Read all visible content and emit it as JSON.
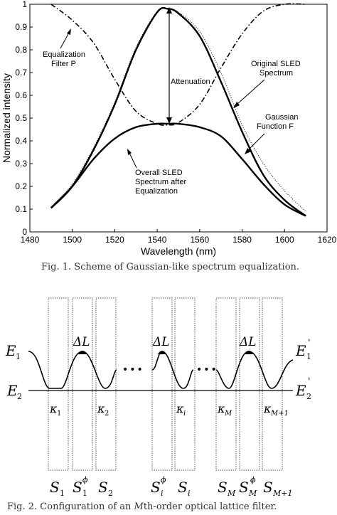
{
  "fig1": {
    "chart_data": {
      "type": "line",
      "xlabel": "Wavelength (nm)",
      "ylabel": "Normalized intensity",
      "xlim": [
        1480,
        1620
      ],
      "ylim": [
        0,
        1
      ],
      "x_ticks": [
        "1480",
        "1500",
        "1520",
        "1540",
        "1560",
        "1580",
        "1600",
        "1620"
      ],
      "y_ticks": [
        "0",
        "0.1",
        "0.2",
        "0.3",
        "0.4",
        "0.5",
        "0.6",
        "0.7",
        "0.8",
        "0.9",
        "1"
      ],
      "series": [
        {
          "style": "solid-thick",
          "x": [
            1490,
            1500,
            1510,
            1520,
            1530,
            1540,
            1545,
            1550,
            1560,
            1570,
            1580,
            1590,
            1600,
            1610
          ],
          "values": [
            0.105,
            0.2,
            0.36,
            0.56,
            0.8,
            0.965,
            0.98,
            0.96,
            0.86,
            0.66,
            0.44,
            0.25,
            0.14,
            0.07
          ]
        },
        {
          "style": "dotted",
          "x": [
            1490,
            1500,
            1510,
            1520,
            1530,
            1540,
            1545,
            1550,
            1560,
            1570,
            1580,
            1590,
            1600,
            1610
          ],
          "values": [
            0.11,
            0.21,
            0.37,
            0.57,
            0.81,
            0.97,
            0.98,
            0.965,
            0.88,
            0.7,
            0.47,
            0.3,
            0.18,
            0.09
          ]
        },
        {
          "style": "dash-dot",
          "x": [
            1490,
            1500,
            1510,
            1520,
            1530,
            1540,
            1545,
            1550,
            1560,
            1570,
            1580,
            1590,
            1600,
            1610
          ],
          "values": [
            1.0,
            0.93,
            0.83,
            0.67,
            0.53,
            0.475,
            0.47,
            0.48,
            0.56,
            0.72,
            0.87,
            0.97,
            1.0,
            1.0
          ]
        },
        {
          "style": "solid-thick",
          "x": [
            1490,
            1500,
            1510,
            1520,
            1530,
            1540,
            1545,
            1550,
            1560,
            1570,
            1580,
            1590,
            1600,
            1610
          ],
          "values": [
            0.105,
            0.2,
            0.32,
            0.41,
            0.46,
            0.475,
            0.475,
            0.475,
            0.46,
            0.42,
            0.32,
            0.21,
            0.12,
            0.07
          ]
        }
      ],
      "annotations": [
        "Equalization Filter P",
        "Original SLED Spectrum",
        "Attenuation",
        "Gaussian Function F",
        "Overall SLED Spectrum after Equalization"
      ]
    },
    "labels": {
      "filter_l1": "Equalization",
      "filter_l2": "Filter P",
      "orig_l1": "Original SLED",
      "orig_l2": "Spectrum",
      "atten": "Attenuation",
      "gauss_l1": "Gaussian",
      "gauss_l2": "Function F",
      "overall_l1": "Overall SLED",
      "overall_l2": "Spectrum after",
      "overall_l3": "Equalization"
    },
    "caption": "Fig. 1.   Scheme of Gaussian-like spectrum equalization."
  },
  "fig2": {
    "e1": "E",
    "e1_sub": "1",
    "e1p": "E",
    "e1p_sub": "1",
    "e1p_prime": "'",
    "e2": "E",
    "e2_sub": "2",
    "e2p": "E",
    "e2p_sub": "2",
    "e2p_prime": "'",
    "dl": "ΔL",
    "dots": "•••",
    "kappas": [
      {
        "k": "κ",
        "sub": "1"
      },
      {
        "k": "κ",
        "sub": "2"
      },
      {
        "k": "κ",
        "sub": "i"
      },
      {
        "k": "κ",
        "sub": "M"
      },
      {
        "k": "κ",
        "sub": "M+1"
      }
    ],
    "sections": [
      {
        "s": "S",
        "sub": "1",
        "sup": ""
      },
      {
        "s": "S",
        "sub": "1",
        "sup": "ϕ"
      },
      {
        "s": "S",
        "sub": "2",
        "sup": ""
      },
      {
        "s": "S",
        "sub": "i",
        "sup": "ϕ"
      },
      {
        "s": "S",
        "sub": "i",
        "sup": ""
      },
      {
        "s": "S",
        "sub": "M",
        "sup": ""
      },
      {
        "s": "S",
        "sub": "M",
        "sup": "ϕ"
      },
      {
        "s": "S",
        "sub": "M+1",
        "sup": ""
      }
    ],
    "caption_pre": "Fig. 2.   Configuration of an ",
    "caption_m": "M",
    "caption_post": "th-order optical lattice filter."
  }
}
